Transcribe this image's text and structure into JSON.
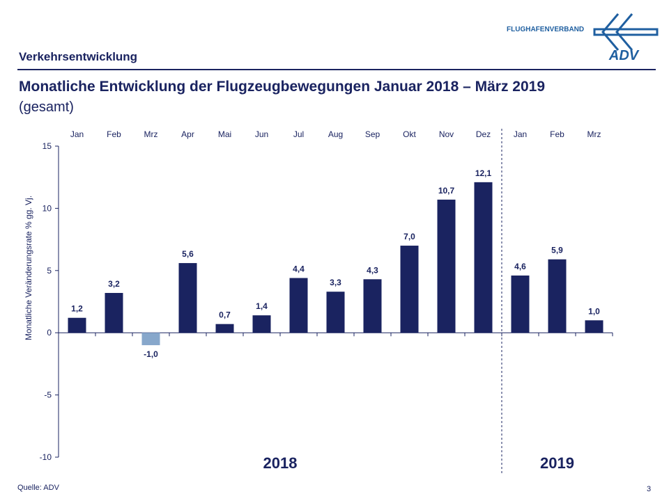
{
  "header": {
    "section": "Verkehrsentwicklung",
    "title": "Monatliche Entwicklung der Flugzeugbewegungen Januar 2018 – März 2019",
    "subtitle": "(gesamt)",
    "logo_text": "FLUGHAFENVERBAND",
    "logo_brand": "ADV"
  },
  "footer": {
    "source": "Quelle: ADV",
    "page_number": "3"
  },
  "colors": {
    "primary": "#1a2360",
    "negative": "#87a7cb",
    "logo": "#1f5fa0"
  },
  "chart_data": {
    "type": "bar",
    "categories": [
      "Jan",
      "Feb",
      "Mrz",
      "Apr",
      "Mai",
      "Jun",
      "Jul",
      "Aug",
      "Sep",
      "Okt",
      "Nov",
      "Dez",
      "Jan",
      "Feb",
      "Mrz"
    ],
    "values": [
      1.2,
      3.2,
      -1.0,
      5.6,
      0.7,
      1.4,
      4.4,
      3.3,
      4.3,
      7.0,
      10.7,
      12.1,
      4.6,
      5.9,
      1.0
    ],
    "data_labels": [
      "1,2",
      "3,2",
      "-1,0",
      "5,6",
      "0,7",
      "1,4",
      "4,4",
      "3,3",
      "4,3",
      "7,0",
      "10,7",
      "12,1",
      "4,6",
      "5,9",
      "1,0"
    ],
    "ylabel": "Monatliche Veränderungsrate % gg. Vj.",
    "ylim": [
      -10,
      15
    ],
    "yticks": [
      -10,
      -5,
      0,
      5,
      10,
      15
    ],
    "ytick_labels": [
      "-10",
      "-5",
      "0",
      "5",
      "10",
      "15"
    ],
    "year_groups": [
      {
        "label": "2018",
        "months": 12
      },
      {
        "label": "2019",
        "months": 3
      }
    ],
    "category_axis_position": "top",
    "grid": false,
    "legend": "none"
  }
}
